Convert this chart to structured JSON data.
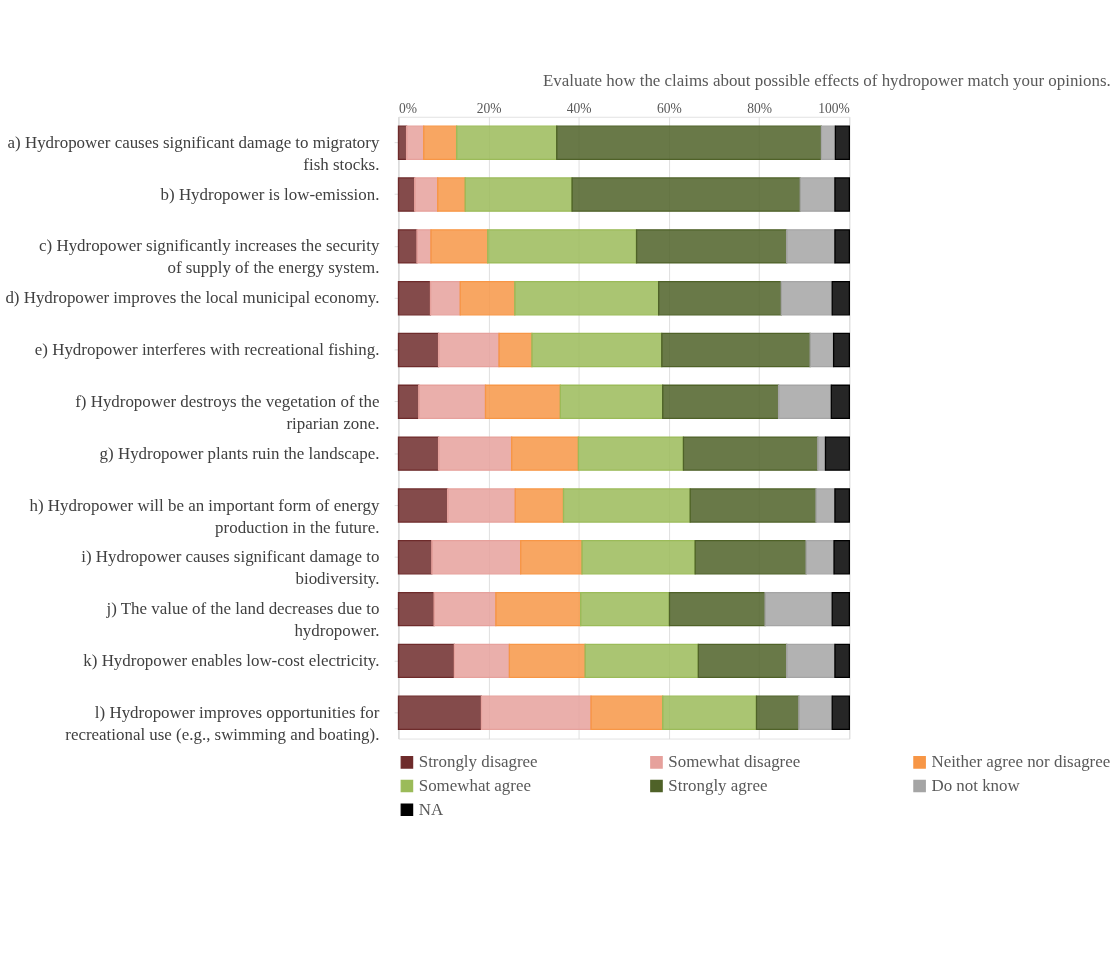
{
  "chart_data": {
    "type": "bar",
    "orientation": "horizontal",
    "stacked": true,
    "title": "Evaluate how the claims about possible effects of hydropower match your opinions.",
    "categories": [
      "a) Hydropower causes significant damage to migratory fish stocks.",
      "b) Hydropower is low-emission.",
      "c) Hydropower significantly increases the security of supply of the energy system.",
      "d) Hydropower improves the local municipal economy.",
      "e) Hydropower interferes with recreational fishing.",
      "f) Hydropower destroys the vegetation of the riparian zone.",
      "g) Hydropower plants ruin the landscape.",
      "h) Hydropower will be an important form of energy production in the future.",
      "i) Hydropower causes significant damage to biodiversity.",
      "j) The value of the land decreases due to hydropower.",
      "k) Hydropower enables low-cost electricity.",
      "l) Hydropower improves opportunities for recreational use (e.g., swimming and boating)."
    ],
    "series": [
      {
        "name": "Strongly disagree",
        "color": "#6e2b2b",
        "values": [
          1.8,
          3.6,
          4.1,
          7.1,
          8.9,
          4.5,
          8.9,
          10.9,
          7.4,
          7.9,
          12.4,
          18.4
        ]
      },
      {
        "name": "Somewhat disagree",
        "color": "#e6a19c",
        "values": [
          3.8,
          5.1,
          3.1,
          6.6,
          13.4,
          14.8,
          16.2,
          15.0,
          19.7,
          13.7,
          12.2,
          24.3
        ]
      },
      {
        "name": "Neither agree nor disagree",
        "color": "#f79646",
        "values": [
          7.3,
          6.1,
          12.6,
          12.1,
          7.3,
          16.6,
          14.8,
          10.7,
          13.6,
          18.8,
          16.8,
          15.9
        ]
      },
      {
        "name": "Somewhat agree",
        "color": "#9bbb59",
        "values": [
          22.2,
          23.7,
          33.0,
          31.9,
          28.8,
          22.7,
          23.3,
          28.1,
          25.1,
          19.7,
          25.1,
          20.8
        ]
      },
      {
        "name": "Strongly agree",
        "color": "#4f6228",
        "values": [
          58.7,
          50.6,
          33.3,
          27.2,
          32.9,
          25.7,
          29.8,
          27.9,
          24.6,
          21.2,
          19.6,
          9.4
        ]
      },
      {
        "name": "Do not know",
        "color": "#a5a5a5",
        "values": [
          3.1,
          7.7,
          10.7,
          11.3,
          5.2,
          11.7,
          1.7,
          4.2,
          6.2,
          14.9,
          10.7,
          7.4
        ]
      },
      {
        "name": "NA",
        "color": "#000000",
        "values": [
          3.1,
          3.2,
          3.2,
          3.8,
          3.5,
          4.0,
          5.3,
          3.2,
          3.4,
          3.8,
          3.2,
          3.8
        ]
      }
    ],
    "xlim": [
      0,
      100
    ],
    "xticks": [
      {
        "value": 0,
        "label": "0%"
      },
      {
        "value": 20,
        "label": "20%"
      },
      {
        "value": 40,
        "label": "40%"
      },
      {
        "value": 60,
        "label": "60%"
      },
      {
        "value": 80,
        "label": "80%"
      },
      {
        "value": 100,
        "label": "100%"
      }
    ],
    "grid": "x",
    "legend": "bottom"
  }
}
